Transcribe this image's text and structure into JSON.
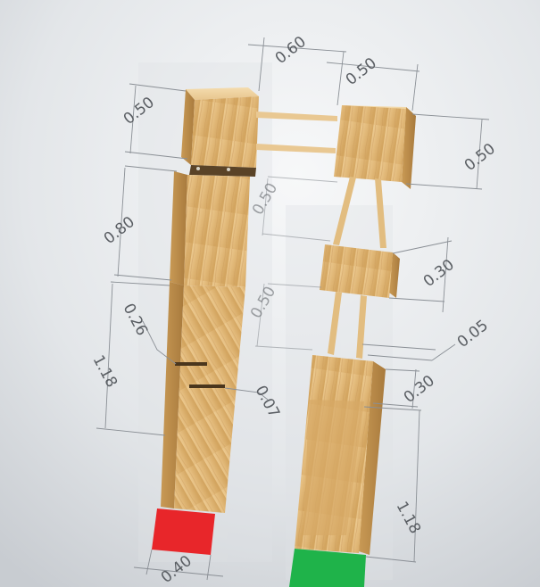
{
  "colors": {
    "background_light": "#f2f4f6",
    "background_dark": "#c9cdd2",
    "wood_light": "#e7c48a",
    "wood_mid": "#d9ae6b",
    "wood_dark": "#b98c4c",
    "marker_red": "#e8262a",
    "marker_green": "#1fb34a",
    "dimension_text": "#5a5e63"
  },
  "dimensions": {
    "top_gap_width": "0.60",
    "right_block_width": "0.50",
    "left_top_block_height": "0.50",
    "right_top_block_height": "0.50",
    "left_leg_block_height": "0.80",
    "ghost_upper_height": "0.50",
    "middle_block_height": "0.30",
    "left_notch_offset": "0.26",
    "ghost_lower_height": "0.50",
    "gap_small": "0.05",
    "left_leg_height": "1.18",
    "notch_depth": "0.07",
    "right_foot_top_height": "0.30",
    "right_foot_height": "1.18",
    "left_foot_width": "0.40"
  }
}
